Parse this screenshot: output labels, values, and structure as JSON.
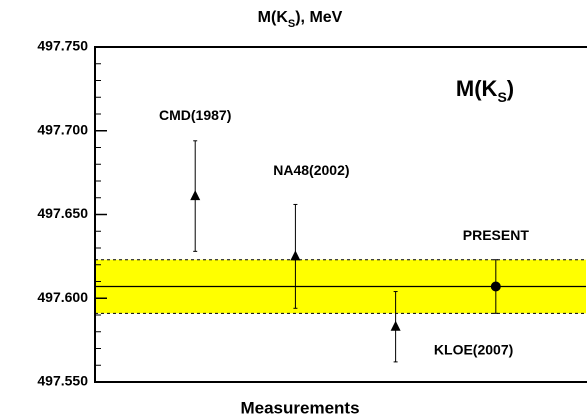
{
  "chart_data": {
    "type": "errorbar",
    "title": [
      "M(K",
      "S",
      "), MeV"
    ],
    "inset_label": [
      "M(K",
      "S",
      ")"
    ],
    "xlabel": "Measurements",
    "categories": [
      null,
      null,
      null,
      null
    ],
    "x": [
      1,
      2,
      3,
      4
    ],
    "xlim": [
      0,
      4.9
    ],
    "values": [
      497.661,
      497.625,
      497.583,
      497.607
    ],
    "errors": [
      0.033,
      0.031,
      0.021,
      0.016
    ],
    "point_labels": [
      "CMD(1987)",
      "NA48(2002)",
      "KLOE(2007)",
      "PRESENT"
    ],
    "markers": [
      "triangle",
      "triangle",
      "triangle",
      "circle"
    ],
    "band": {
      "center": 497.607,
      "low": 497.591,
      "high": 497.623,
      "color": "#ffff00"
    },
    "ylim": [
      497.55,
      497.75
    ],
    "yticks": [
      {
        "value": 497.55,
        "label": "497.550"
      },
      {
        "value": 497.6,
        "label": "497.600"
      },
      {
        "value": 497.65,
        "label": "497.650"
      },
      {
        "value": 497.7,
        "label": "497.700"
      },
      {
        "value": 497.75,
        "label": "497.750"
      }
    ],
    "yminorticks": [
      497.56,
      497.57,
      497.58,
      497.59,
      497.61,
      497.62,
      497.63,
      497.64,
      497.66,
      497.67,
      497.68,
      497.69,
      497.71,
      497.72,
      497.73,
      497.74
    ]
  }
}
